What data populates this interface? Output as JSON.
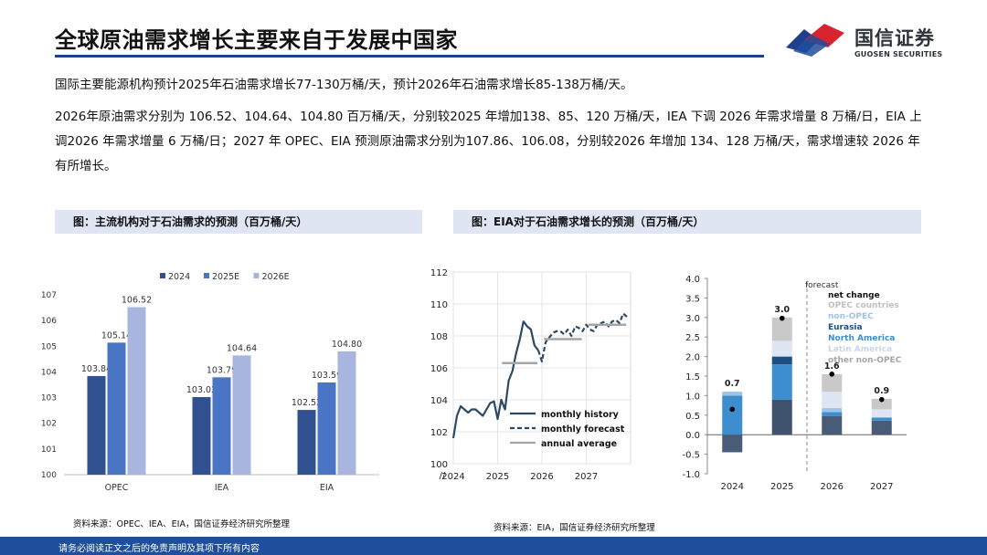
{
  "header": {
    "title": "全球原油需求增长主要来自于发展中国家",
    "logo_cn": "国信证券",
    "logo_en": "GUOSEN SECURITIES"
  },
  "body": {
    "para1": "国际主要能源机构预计2025年石油需求增长77-130万桶/天，预计2026年石油需求增长85-138万桶/天。",
    "para2": "2026年原油需求分别为 106.52、104.64、104.80 百万桶/天，分别较2025 年增加138、85、120 万桶/天，IEA 下调 2026 年需求增量 8 万桶/日，EIA 上调2026 年需求增量 6 万桶/日；2027 年 OPEC、EIA 预测原油需求分别为107.86、106.08，分别较2026 年增加 134、128 万桶/天，需求增速较 2026 年有所增长。"
  },
  "captions": {
    "left": "图：主流机构对于石油需求的预测（百万桶/天）",
    "right": "图：EIA对于石油需求增长的预测（百万桶/天）"
  },
  "sources": {
    "left": "资料来源：OPEC、IEA、EIA，国信证券经济研究所整理",
    "right": "资料来源：EIA，国信证券经济研究所整理"
  },
  "footer": {
    "disclaimer": "请务必阅读正文之后的免责声明及其项下所有内容"
  },
  "colors": {
    "navy": "#1f3f8f",
    "accent_red": "#d9232e",
    "footer_blue": "#1f4e9c",
    "caption_bg": "#dfe5f3"
  },
  "chart_data": [
    {
      "type": "bar",
      "categories": [
        "OPEC",
        "IEA",
        "EIA"
      ],
      "series": [
        {
          "name": "2024",
          "color": "#30508f",
          "values": [
            103.84,
            103.02,
            102.52
          ]
        },
        {
          "name": "2025E",
          "color": "#4a74c4",
          "values": [
            105.14,
            103.79,
            103.59
          ]
        },
        {
          "name": "2026E",
          "color": "#a8b5df",
          "values": [
            106.52,
            104.64,
            104.8
          ]
        }
      ],
      "yticks": [
        "100",
        "101",
        "102",
        "103",
        "104",
        "105",
        "106",
        "107"
      ],
      "ylim": [
        100,
        107
      ],
      "legend": "top"
    },
    {
      "type": "line",
      "xticks": [
        "2024",
        "2025",
        "2026",
        "2027"
      ],
      "yticks": [
        "100",
        "102",
        "104",
        "106",
        "108",
        "110",
        "112"
      ],
      "ylim": [
        100,
        112
      ],
      "axis_break_mark": "//",
      "grid": true,
      "series": [
        {
          "name": "monthly history",
          "style": "solid",
          "color": "#2b4a62",
          "x": [
            2024.0,
            2024.083,
            2024.167,
            2024.25,
            2024.333,
            2024.417,
            2024.5,
            2024.583,
            2024.667,
            2024.75,
            2024.833,
            2024.917,
            2025.0,
            2025.083,
            2025.167,
            2025.25,
            2025.333,
            2025.417,
            2025.5,
            2025.583,
            2025.667,
            2025.75,
            2025.833,
            2025.917
          ],
          "y": [
            101.6,
            103.0,
            103.6,
            103.4,
            103.2,
            103.4,
            103.4,
            103.2,
            103.0,
            103.4,
            103.8,
            103.9,
            102.8,
            104.0,
            103.4,
            105.2,
            105.8,
            106.9,
            107.8,
            108.9,
            108.6,
            108.4,
            107.4,
            107.1
          ]
        },
        {
          "name": "monthly forecast",
          "style": "dashed",
          "color": "#2b4a62",
          "x": [
            2025.917,
            2026.0,
            2026.083,
            2026.167,
            2026.25,
            2026.333,
            2026.417,
            2026.5,
            2026.583,
            2026.667,
            2026.75,
            2026.833,
            2026.917,
            2027.0,
            2027.083,
            2027.167,
            2027.25,
            2027.333,
            2027.417,
            2027.5,
            2027.583,
            2027.667,
            2027.75,
            2027.833,
            2027.917
          ],
          "y": [
            107.1,
            106.4,
            107.6,
            107.9,
            108.2,
            108.3,
            108.3,
            108.1,
            108.4,
            108.0,
            108.6,
            108.5,
            108.3,
            108.7,
            108.4,
            108.3,
            108.7,
            108.8,
            108.9,
            108.6,
            108.9,
            109.0,
            108.8,
            109.4,
            109.2
          ]
        },
        {
          "name": "annual average",
          "style": "step",
          "color": "#a5a5a5",
          "segments": [
            {
              "x0": 2025.1,
              "x1": 2025.9,
              "y": 106.3
            },
            {
              "x0": 2026.05,
              "x1": 2026.9,
              "y": 107.8
            },
            {
              "x0": 2027.05,
              "x1": 2027.9,
              "y": 108.7
            }
          ]
        }
      ]
    },
    {
      "type": "bar",
      "stacked": true,
      "categories": [
        "2024",
        "2025",
        "2026",
        "2027"
      ],
      "yticks": [
        "4.0",
        "3.5",
        "3.0",
        "2.5",
        "2.0",
        "1.5",
        "1.0",
        "0.5",
        "0.0",
        "-0.5",
        "-1.0"
      ],
      "ylim": [
        -1.0,
        4.0
      ],
      "forecast_label": "forecast",
      "legend_title": "net change",
      "components": [
        {
          "name": "other non-OPEC",
          "color": "#c9c9c9"
        },
        {
          "name": "Latin America",
          "color": "#dde6f2"
        },
        {
          "name": "North America",
          "color": "#3d8ecf"
        },
        {
          "name": "Eurasia",
          "color": "#1f4f82"
        },
        {
          "name": "non-OPEC",
          "color": "#9dc3e6"
        },
        {
          "name": "OPEC countries",
          "color": "#c9c9c9"
        }
      ],
      "bars": [
        {
          "category": "2024",
          "net": 0.7,
          "net_label": "0.7",
          "net_marker": 0.65,
          "stack": [
            {
              "c": "#485c78",
              "from": -0.45,
              "to": 0.0
            },
            {
              "c": "#3d8ecf",
              "from": 0.0,
              "to": 1.0
            },
            {
              "c": "#9dc3e6",
              "from": 1.0,
              "to": 1.1
            }
          ]
        },
        {
          "category": "2025",
          "net": 3.0,
          "net_label": "3.0",
          "net_marker": 2.98,
          "stack": [
            {
              "c": "#3f526e",
              "from": 0.0,
              "to": 0.9
            },
            {
              "c": "#3d8ecf",
              "from": 0.9,
              "to": 1.8
            },
            {
              "c": "#1f4f82",
              "from": 1.8,
              "to": 2.0
            },
            {
              "c": "#dde6f2",
              "from": 2.0,
              "to": 2.4
            },
            {
              "c": "#c9c9c9",
              "from": 2.4,
              "to": 3.0
            }
          ]
        },
        {
          "category": "2026",
          "net": 1.6,
          "net_label": "1.6",
          "net_marker": 1.55,
          "stack": [
            {
              "c": "#485c78",
              "from": 0.0,
              "to": 0.48
            },
            {
              "c": "#3d8ecf",
              "from": 0.48,
              "to": 0.58
            },
            {
              "c": "#9dc3e6",
              "from": 0.58,
              "to": 0.68
            },
            {
              "c": "#dde6f2",
              "from": 0.68,
              "to": 1.1
            },
            {
              "c": "#c9c9c9",
              "from": 1.1,
              "to": 1.55
            }
          ]
        },
        {
          "category": "2027",
          "net": 0.9,
          "net_label": "0.9",
          "net_marker": 0.9,
          "stack": [
            {
              "c": "#485c78",
              "from": 0.0,
              "to": 0.36
            },
            {
              "c": "#3d8ecf",
              "from": 0.36,
              "to": 0.44
            },
            {
              "c": "#dde6f2",
              "from": 0.44,
              "to": 0.65
            },
            {
              "c": "#c9c9c9",
              "from": 0.65,
              "to": 0.92
            }
          ]
        }
      ]
    }
  ]
}
